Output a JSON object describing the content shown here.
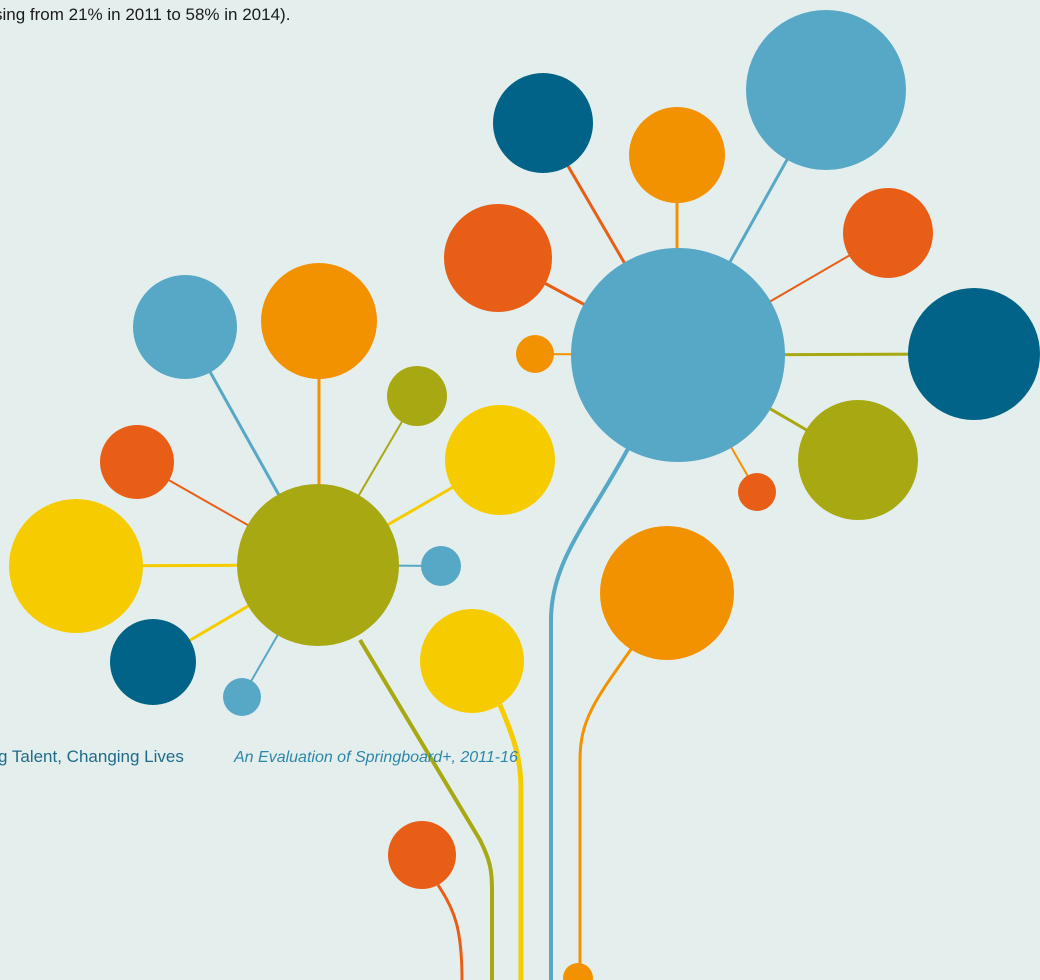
{
  "body_text": "sing from 21% in 2011 to 58% in 2014).",
  "footer": {
    "title": "g Talent, Changing Lives",
    "subtitle": "An Evaluation of Springboard+, 2011-16"
  }
}
